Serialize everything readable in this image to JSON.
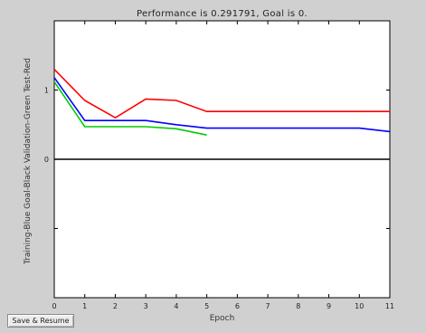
{
  "window": {
    "background": "#d0d0d0"
  },
  "plot": {
    "title": "Performance is 0.291791, Goal is 0.",
    "xlabel": "Epoch",
    "ylabel": "Training-Blue  Goal-Black  Validation-Green  Test-Red"
  },
  "save_button": {
    "label": "Save & Resume"
  },
  "chart_data": {
    "type": "line",
    "title": "Performance is 0.291791, Goal is 0.",
    "xlabel": "Epoch",
    "ylabel": "Training-Blue  Goal-Black  Validation-Green  Test-Red",
    "xlim": [
      0,
      11
    ],
    "ylim": [
      -2,
      2
    ],
    "x_ticks": [
      0,
      1,
      2,
      3,
      4,
      5,
      6,
      7,
      8,
      9,
      10,
      11
    ],
    "y_ticks": [
      -2,
      -1,
      0,
      1,
      2
    ],
    "y_tick_labels": [
      "",
      "",
      "0",
      "1",
      ""
    ],
    "grid": false,
    "series": [
      {
        "color": "#ff0000",
        "x": [
          0,
          1,
          2,
          3,
          4,
          5,
          6,
          11
        ],
        "y": [
          1.3,
          0.85,
          0.6,
          0.87,
          0.85,
          0.69,
          0.69,
          0.69
        ]
      },
      {
        "color": "#0000ff",
        "x": [
          0,
          1,
          2,
          3,
          4,
          5,
          6,
          10,
          11
        ],
        "y": [
          1.18,
          0.56,
          0.56,
          0.56,
          0.5,
          0.45,
          0.45,
          0.45,
          0.4
        ]
      },
      {
        "color": "#00cc00",
        "x": [
          0,
          1,
          2,
          3,
          4,
          5
        ],
        "y": [
          1.12,
          0.47,
          0.47,
          0.47,
          0.44,
          0.35
        ]
      },
      {
        "color": "#000000",
        "x": [
          0,
          11
        ],
        "y": [
          0,
          0
        ]
      }
    ]
  }
}
